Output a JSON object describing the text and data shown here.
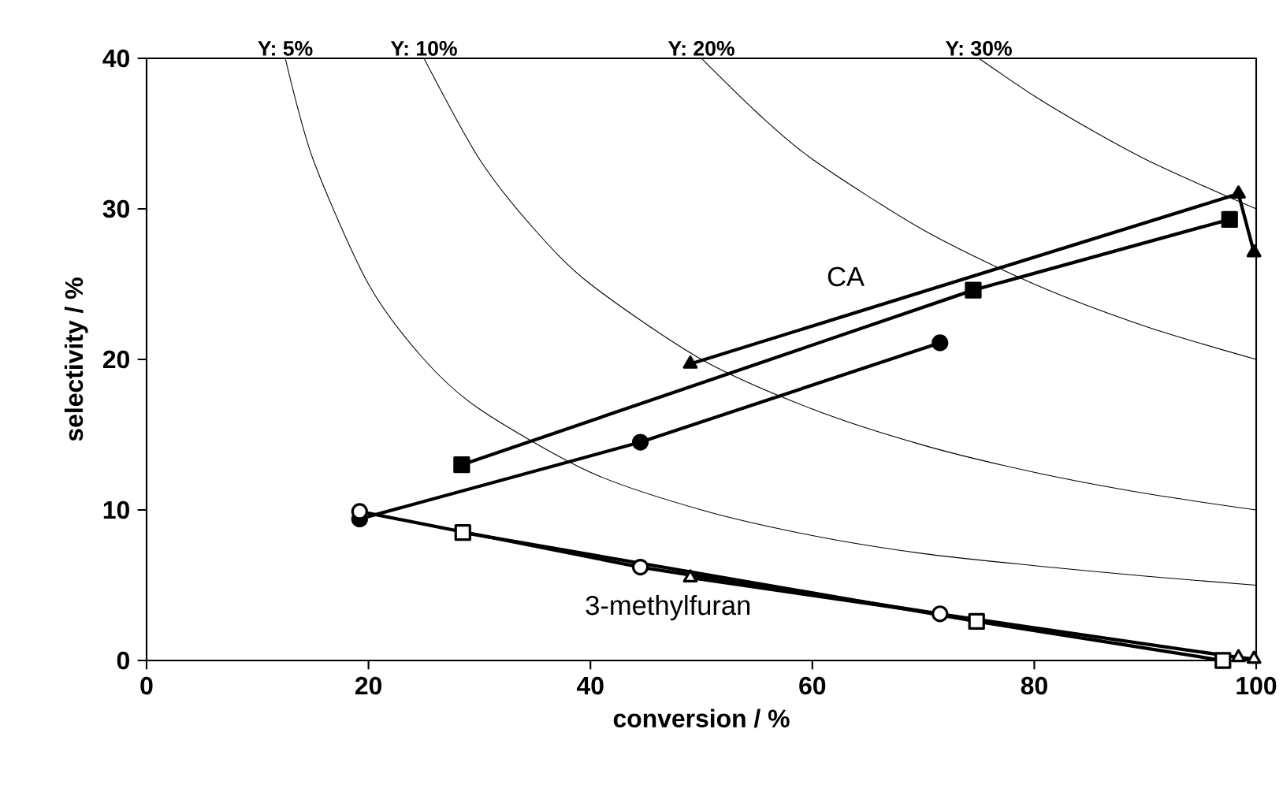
{
  "chart_data": {
    "type": "line",
    "xlabel": "conversion / %",
    "ylabel": "selectivity / %",
    "xlim": [
      0,
      100
    ],
    "ylim": [
      0,
      40
    ],
    "xticks": [
      0,
      20,
      40,
      60,
      80,
      100
    ],
    "yticks": [
      0,
      10,
      20,
      30,
      40
    ],
    "grid": false,
    "series": [
      {
        "color": "#000000",
        "marker": "none",
        "x": [
          12.5,
          15,
          20,
          25,
          30,
          40,
          50,
          60,
          70,
          80,
          90,
          100
        ],
        "values": [
          40,
          33.3,
          25,
          20,
          16.7,
          12.5,
          10,
          8.3,
          7.1,
          6.3,
          5.6,
          5
        ]
      },
      {
        "color": "#000000",
        "marker": "none",
        "x": [
          25,
          30,
          35,
          40,
          50,
          60,
          70,
          80,
          90,
          100
        ],
        "values": [
          40,
          33.3,
          28.6,
          25,
          20,
          16.7,
          14.3,
          12.5,
          11.1,
          10
        ]
      },
      {
        "color": "#000000",
        "marker": "none",
        "x": [
          50,
          55,
          60,
          70,
          80,
          90,
          100
        ],
        "values": [
          40,
          36.4,
          33.3,
          28.6,
          25,
          22.2,
          20
        ]
      },
      {
        "color": "#000000",
        "marker": "none",
        "x": [
          75,
          80,
          85,
          90,
          95,
          100
        ],
        "values": [
          40,
          37.5,
          35.3,
          33.3,
          31.6,
          30
        ]
      },
      {
        "color": "#000000",
        "marker": "square",
        "x": [
          28.4,
          74.5,
          97.6
        ],
        "values": [
          13.0,
          24.6,
          29.3
        ]
      },
      {
        "color": "#000000",
        "marker": "triangle",
        "x": [
          49,
          98.4,
          99.8
        ],
        "values": [
          19.7,
          31.0,
          27.1
        ]
      },
      {
        "color": "#000000",
        "marker": "circle",
        "x": [
          19.2,
          44.5,
          71.5
        ],
        "values": [
          9.4,
          14.5,
          21.1
        ]
      },
      {
        "color": "#000000",
        "marker": "circle",
        "x": [
          19.2,
          44.5,
          71.5
        ],
        "values": [
          9.9,
          6.2,
          3.1
        ]
      },
      {
        "color": "#000000",
        "marker": "square",
        "x": [
          28.5,
          74.8,
          97.0
        ],
        "values": [
          8.5,
          2.6,
          0
        ]
      },
      {
        "color": "#000000",
        "marker": "triangle",
        "x": [
          49,
          98.4,
          99.8
        ],
        "values": [
          5.5,
          0.2,
          0.1
        ]
      }
    ],
    "annotations": [
      {
        "text": "Y: 5%",
        "x": 12.5,
        "y": 40
      },
      {
        "text": "Y: 10%",
        "x": 25,
        "y": 40
      },
      {
        "text": "Y: 20%",
        "x": 50,
        "y": 40
      },
      {
        "text": "Y: 30%",
        "x": 75,
        "y": 40
      },
      "CA",
      "3-methylfuran"
    ]
  }
}
